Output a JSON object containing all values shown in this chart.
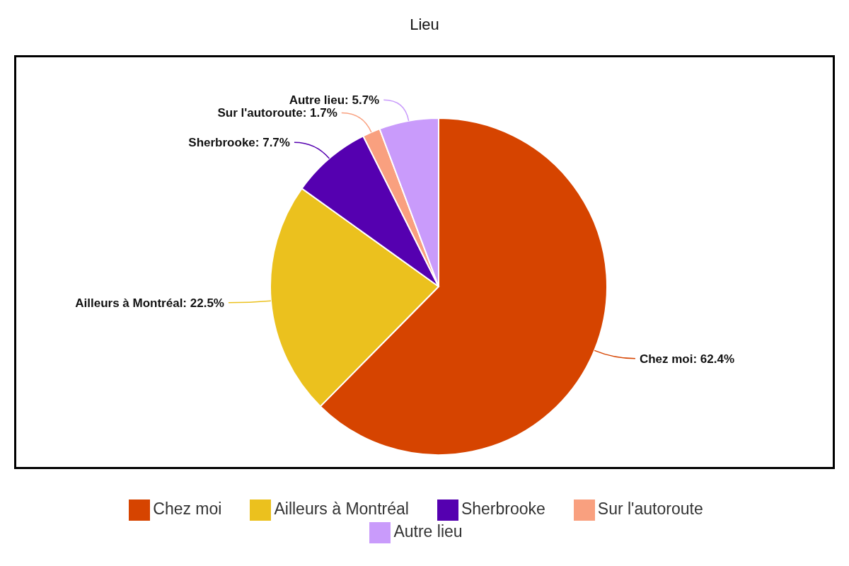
{
  "chart_data": {
    "type": "pie",
    "title": "Lieu",
    "categories": [
      "Chez moi",
      "Ailleurs à Montréal",
      "Sherbrooke",
      "Sur l'autoroute",
      "Autre lieu"
    ],
    "values": [
      62.4,
      22.5,
      7.7,
      1.7,
      5.7
    ],
    "colors": [
      "#d64400",
      "#ebc11e",
      "#5500b0",
      "#f9a07f",
      "#c99bfb"
    ],
    "value_labels": [
      "Chez moi: 62.4%",
      "Ailleurs à Montréal: 22.5%",
      "Sherbrooke: 7.7%",
      "Sur l'autoroute: 1.7%",
      "Autre lieu: 5.7%"
    ],
    "legend": "bottom"
  }
}
